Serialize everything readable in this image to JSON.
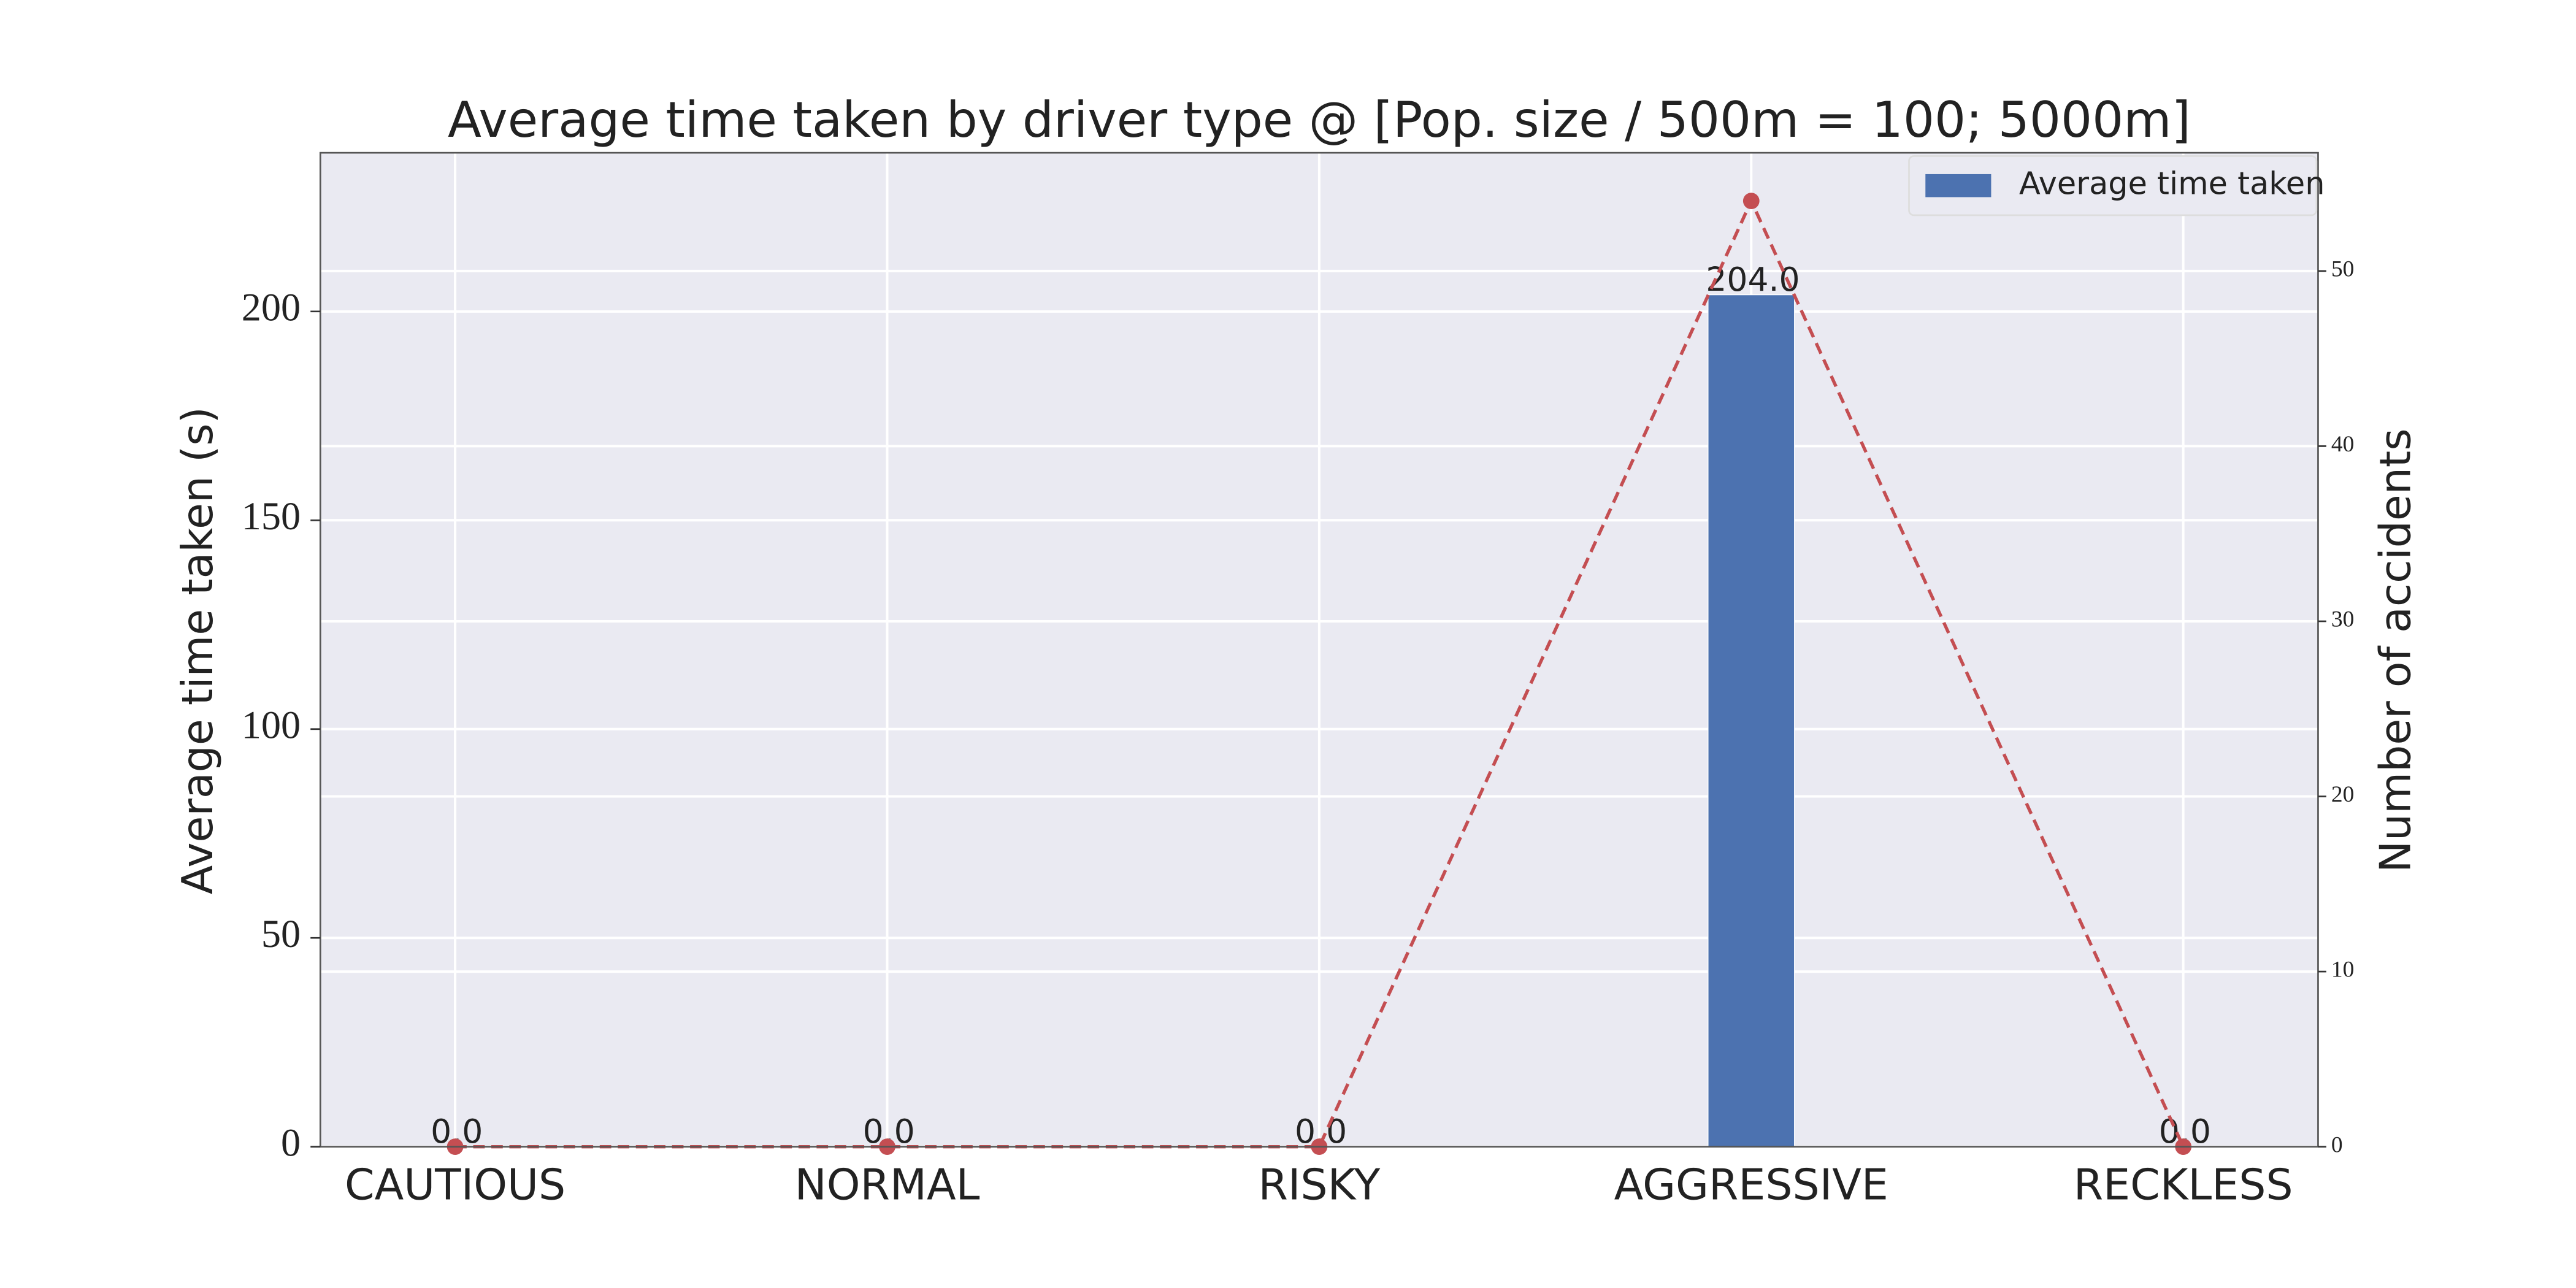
{
  "chart_data": {
    "type": "bar-line",
    "title": "Average time taken by driver type @ [Pop. size / 500m = 100; 5000m]",
    "y_label": "Average time taken (s)",
    "y2_label": "Number of accidents",
    "categories": [
      "CAUTIOUS",
      "NORMAL",
      "RISKY",
      "AGGRESSIVE",
      "RECKLESS"
    ],
    "series": [
      {
        "name": "Average time taken",
        "color": "#4c72b0",
        "values": [
          0,
          0,
          0,
          204,
          0
        ],
        "value_labels": [
          "0.0",
          "0.0",
          "0.0",
          "204.0",
          "0.0"
        ]
      },
      {
        "color": "#c44e52",
        "values": [
          0,
          0,
          0,
          54,
          0
        ],
        "axis": "y2",
        "linestyle": "dashed"
      }
    ],
    "ylim": [
      0,
      238
    ],
    "yticks": [
      0,
      50,
      100,
      150,
      200
    ],
    "y2lim": [
      0,
      56.75
    ],
    "y2ticks": [
      0,
      10,
      20,
      30,
      40,
      50
    ],
    "grid": true,
    "legend": "upper right"
  }
}
